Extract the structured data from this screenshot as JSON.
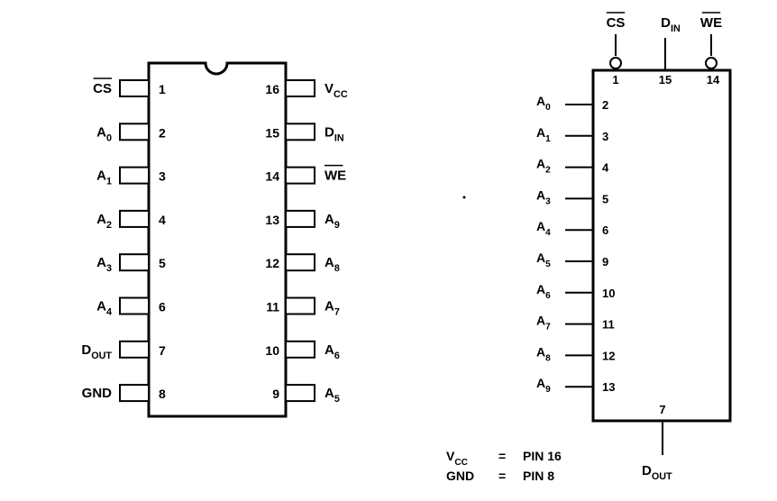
{
  "dip": {
    "left_pins": [
      {
        "num": "1",
        "name": "CS",
        "sub": "",
        "overbar": true
      },
      {
        "num": "2",
        "name": "A",
        "sub": "0",
        "overbar": false
      },
      {
        "num": "3",
        "name": "A",
        "sub": "1",
        "overbar": false
      },
      {
        "num": "4",
        "name": "A",
        "sub": "2",
        "overbar": false
      },
      {
        "num": "5",
        "name": "A",
        "sub": "3",
        "overbar": false
      },
      {
        "num": "6",
        "name": "A",
        "sub": "4",
        "overbar": false
      },
      {
        "num": "7",
        "name": "D",
        "sub": "OUT",
        "overbar": false
      },
      {
        "num": "8",
        "name": "GND",
        "sub": "",
        "overbar": false
      }
    ],
    "right_pins": [
      {
        "num": "16",
        "name": "V",
        "sub": "CC",
        "overbar": false
      },
      {
        "num": "15",
        "name": "D",
        "sub": "IN",
        "overbar": false
      },
      {
        "num": "14",
        "name": "WE",
        "sub": "",
        "overbar": true
      },
      {
        "num": "13",
        "name": "A",
        "sub": "9",
        "overbar": false
      },
      {
        "num": "12",
        "name": "A",
        "sub": "8",
        "overbar": false
      },
      {
        "num": "11",
        "name": "A",
        "sub": "7",
        "overbar": false
      },
      {
        "num": "10",
        "name": "A",
        "sub": "6",
        "overbar": false
      },
      {
        "num": "9",
        "name": "A",
        "sub": "5",
        "overbar": false
      }
    ]
  },
  "logic": {
    "top_pins": [
      {
        "num": "1",
        "name": "CS",
        "sub": "",
        "overbar": true,
        "bubble": true
      },
      {
        "num": "15",
        "name": "D",
        "sub": "IN",
        "overbar": false,
        "bubble": false
      },
      {
        "num": "14",
        "name": "WE",
        "sub": "",
        "overbar": true,
        "bubble": true
      }
    ],
    "address_pins": [
      {
        "num": "2",
        "name": "A",
        "sub": "0"
      },
      {
        "num": "3",
        "name": "A",
        "sub": "1"
      },
      {
        "num": "4",
        "name": "A",
        "sub": "2"
      },
      {
        "num": "5",
        "name": "A",
        "sub": "3"
      },
      {
        "num": "6",
        "name": "A",
        "sub": "4"
      },
      {
        "num": "9",
        "name": "A",
        "sub": "5"
      },
      {
        "num": "10",
        "name": "A",
        "sub": "6"
      },
      {
        "num": "11",
        "name": "A",
        "sub": "7"
      },
      {
        "num": "12",
        "name": "A",
        "sub": "8"
      },
      {
        "num": "13",
        "name": "A",
        "sub": "9"
      }
    ],
    "output_pin": {
      "num": "7",
      "name": "D",
      "sub": "OUT"
    }
  },
  "power_note": [
    {
      "name": "V",
      "sub": "CC",
      "eq": "=",
      "value": "PIN 16"
    },
    {
      "name": "GND",
      "sub": "",
      "eq": "=",
      "value": "PIN 8"
    }
  ]
}
